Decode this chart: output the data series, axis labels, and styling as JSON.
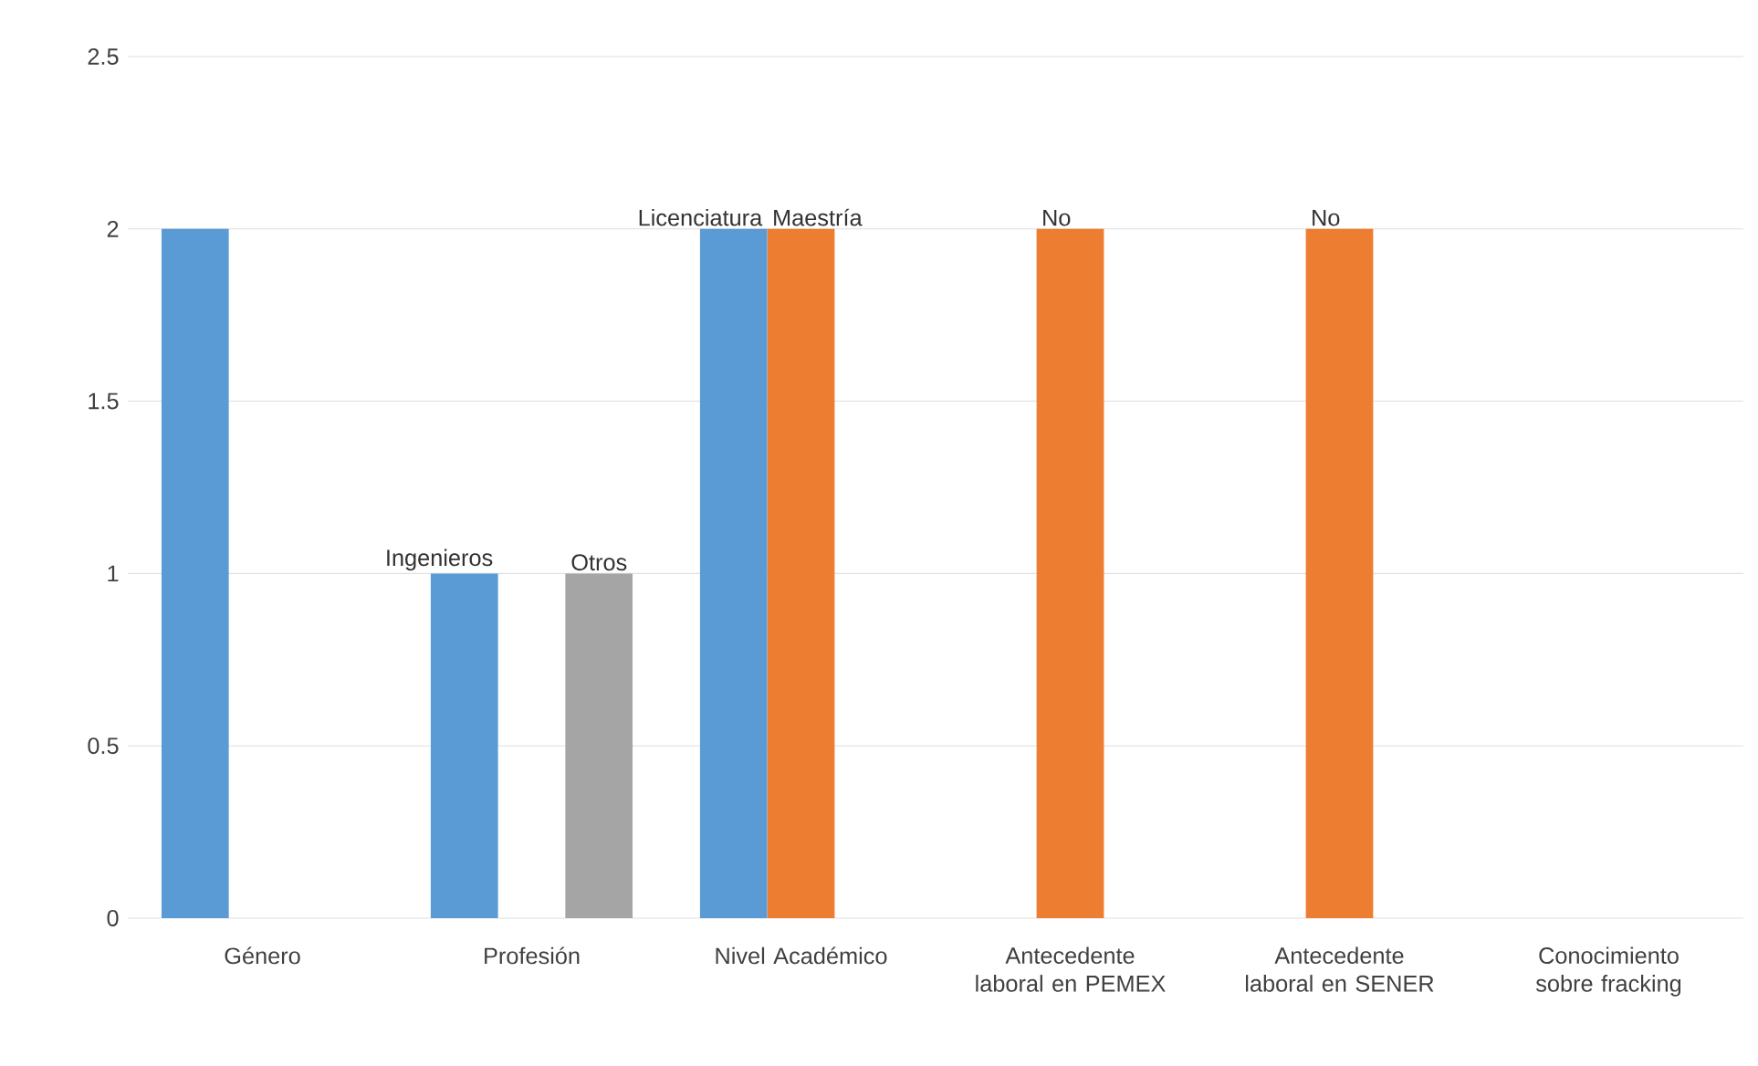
{
  "chart_data": {
    "type": "bar",
    "categories": [
      "Género",
      "Profesión",
      "Nivel Académico",
      "Antecedente laboral en PEMEX",
      "Antecedente laboral en SENER",
      "Conocimiento sobre fracking"
    ],
    "series": [
      {
        "color": "#5b9bd5",
        "values": [
          2,
          1,
          2,
          null,
          null,
          null
        ],
        "value_labels": [
          null,
          "Ingenieros",
          "Licenciatura",
          null,
          null,
          null
        ]
      },
      {
        "color": "#ed7d31",
        "values": [
          null,
          null,
          2,
          2,
          2,
          null
        ],
        "value_labels": [
          null,
          null,
          "Maestría",
          "No",
          "No",
          null
        ]
      },
      {
        "color": "#a5a5a5",
        "values": [
          null,
          1,
          null,
          null,
          null,
          null
        ],
        "value_labels": [
          null,
          "Otros",
          null,
          null,
          null,
          null
        ]
      }
    ],
    "ylim": [
      0,
      2.5
    ],
    "yticks": [
      0,
      0.5,
      1,
      1.5,
      2,
      2.5
    ],
    "grid": "y"
  }
}
